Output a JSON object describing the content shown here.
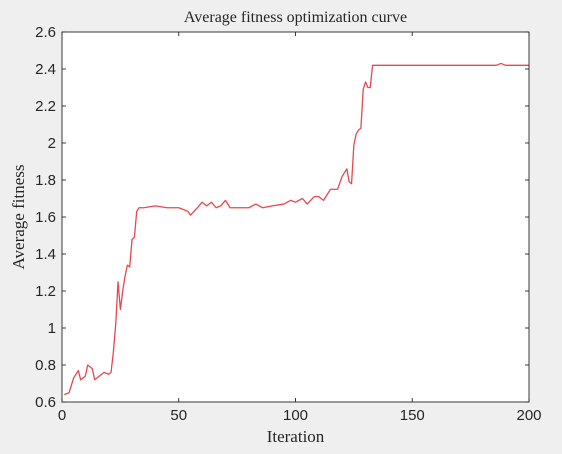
{
  "chart_data": {
    "type": "line",
    "title": "Average fitness optimization curve",
    "xlabel": "Iteration",
    "ylabel": "Average fitness",
    "xlim": [
      0,
      200
    ],
    "ylim": [
      0.6,
      2.6
    ],
    "xticks": [
      "0",
      "50",
      "100",
      "150",
      "200"
    ],
    "yticks": [
      "0.6",
      "0.8",
      "1",
      "1.2",
      "1.4",
      "1.6",
      "1.8",
      "2",
      "2.2",
      "2.4",
      "2.6"
    ],
    "grid": false,
    "line_color": "#e8474f",
    "series": [
      {
        "x": [
          1,
          3,
          5,
          7,
          8,
          9,
          10,
          11,
          12,
          13,
          14,
          16,
          18,
          20,
          21,
          22,
          23,
          24,
          25,
          26,
          27,
          28,
          29,
          30,
          31,
          32,
          33,
          35,
          40,
          45,
          50,
          54,
          55,
          58,
          60,
          62,
          64,
          66,
          68,
          70,
          72,
          75,
          80,
          83,
          86,
          90,
          95,
          98,
          100,
          103,
          105,
          108,
          110,
          112,
          115,
          118,
          120,
          122,
          123,
          124,
          125,
          126,
          127,
          128,
          129,
          130,
          131,
          132,
          133,
          134,
          135,
          140,
          150,
          160,
          170,
          180,
          186,
          188,
          190,
          200
        ],
        "y": [
          0.64,
          0.65,
          0.73,
          0.77,
          0.72,
          0.73,
          0.74,
          0.8,
          0.79,
          0.78,
          0.72,
          0.74,
          0.76,
          0.75,
          0.76,
          0.87,
          1.02,
          1.25,
          1.1,
          1.2,
          1.28,
          1.34,
          1.33,
          1.48,
          1.49,
          1.63,
          1.65,
          1.65,
          1.66,
          1.65,
          1.65,
          1.63,
          1.61,
          1.65,
          1.68,
          1.66,
          1.68,
          1.65,
          1.66,
          1.69,
          1.65,
          1.65,
          1.65,
          1.67,
          1.65,
          1.66,
          1.67,
          1.69,
          1.68,
          1.7,
          1.67,
          1.71,
          1.71,
          1.69,
          1.75,
          1.75,
          1.82,
          1.86,
          1.79,
          1.78,
          1.99,
          2.05,
          2.07,
          2.08,
          2.29,
          2.33,
          2.3,
          2.3,
          2.42,
          2.42,
          2.42,
          2.42,
          2.42,
          2.42,
          2.42,
          2.42,
          2.42,
          2.43,
          2.42,
          2.42
        ]
      }
    ]
  }
}
